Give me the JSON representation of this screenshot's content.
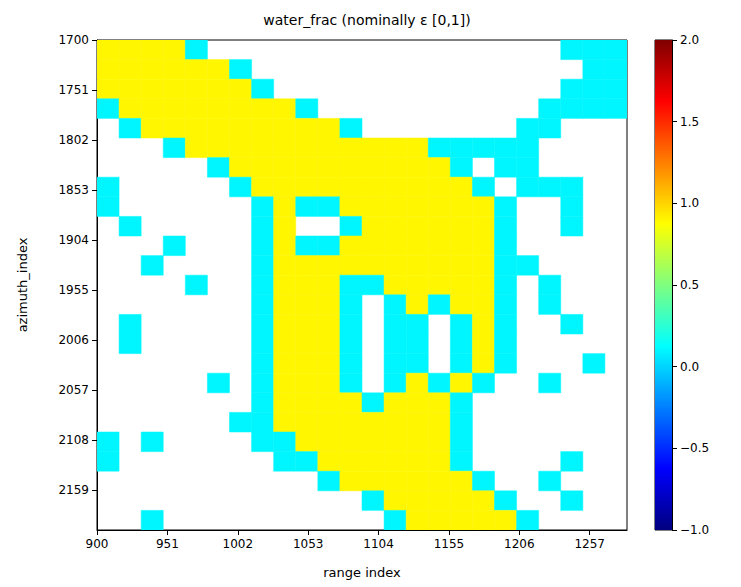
{
  "chart_data": {
    "type": "heatmap",
    "title": "water_frac (nominally ε [0,1])",
    "x_label": "range index",
    "y_label": "azimuth_index",
    "xlim": [
      900,
      1284
    ],
    "ylim": [
      1700,
      2200
    ],
    "xticks": [
      900,
      951,
      1002,
      1053,
      1104,
      1155,
      1206,
      1257
    ],
    "yticks": [
      1700,
      1751,
      1802,
      1853,
      1904,
      1955,
      2006,
      2057,
      2108,
      2159
    ],
    "grid": false,
    "range_edges": [
      900,
      916,
      932,
      948,
      964,
      980,
      996,
      1012,
      1028,
      1044,
      1060,
      1076,
      1092,
      1108,
      1124,
      1140,
      1156,
      1172,
      1188,
      1204,
      1220,
      1236,
      1252,
      1268,
      1284
    ],
    "azimuth_edges": [
      1700,
      1720,
      1740,
      1760,
      1780,
      1800,
      1820,
      1840,
      1860,
      1880,
      1900,
      1920,
      1940,
      1960,
      1980,
      2000,
      2020,
      2040,
      2060,
      2080,
      2100,
      2120,
      2140,
      2160,
      2180,
      2200
    ],
    "cells": [
      [
        0.9,
        0.9,
        0.9,
        0.9,
        0.1,
        null,
        null,
        null,
        null,
        null,
        null,
        null,
        null,
        null,
        null,
        null,
        null,
        null,
        null,
        null,
        null,
        0.1,
        0.1,
        0.1
      ],
      [
        0.9,
        0.9,
        0.9,
        0.9,
        0.9,
        0.9,
        0.1,
        null,
        null,
        null,
        null,
        null,
        null,
        null,
        null,
        null,
        null,
        null,
        null,
        null,
        null,
        null,
        0.1,
        0.1
      ],
      [
        0.9,
        0.9,
        0.9,
        0.9,
        0.9,
        0.9,
        0.9,
        0.1,
        null,
        null,
        null,
        null,
        null,
        null,
        null,
        null,
        null,
        null,
        null,
        null,
        null,
        0.1,
        0.1,
        0.1
      ],
      [
        0.1,
        0.9,
        0.9,
        0.9,
        0.9,
        0.9,
        0.9,
        0.9,
        0.9,
        0.1,
        null,
        null,
        null,
        null,
        null,
        null,
        null,
        null,
        null,
        null,
        0.1,
        0.1,
        0.1,
        0.1
      ],
      [
        null,
        0.1,
        0.9,
        0.9,
        0.9,
        0.9,
        0.9,
        0.9,
        0.9,
        0.9,
        0.9,
        0.1,
        null,
        null,
        null,
        null,
        null,
        null,
        null,
        0.1,
        0.1,
        null,
        null,
        null
      ],
      [
        null,
        null,
        null,
        0.1,
        0.9,
        0.9,
        0.9,
        0.9,
        0.9,
        0.9,
        0.9,
        0.9,
        0.9,
        0.9,
        0.9,
        0.1,
        0.1,
        0.1,
        0.1,
        0.1,
        null,
        null,
        null,
        null
      ],
      [
        null,
        null,
        null,
        null,
        null,
        0.1,
        0.9,
        0.9,
        0.9,
        0.9,
        0.9,
        0.9,
        0.9,
        0.9,
        0.9,
        0.9,
        0.1,
        null,
        0.1,
        0.1,
        null,
        null,
        null,
        null
      ],
      [
        0.1,
        null,
        null,
        null,
        null,
        null,
        0.1,
        0.9,
        0.9,
        0.9,
        0.9,
        0.9,
        0.9,
        0.9,
        0.9,
        0.9,
        0.9,
        0.1,
        null,
        0.1,
        0.1,
        0.1,
        null,
        null
      ],
      [
        0.1,
        null,
        null,
        null,
        null,
        null,
        null,
        0.1,
        0.9,
        0.1,
        0.1,
        0.9,
        0.9,
        0.9,
        0.9,
        0.9,
        0.9,
        0.9,
        0.1,
        null,
        null,
        0.1,
        null,
        null
      ],
      [
        null,
        0.1,
        null,
        null,
        null,
        null,
        null,
        0.1,
        0.9,
        null,
        null,
        0.1,
        0.9,
        0.9,
        0.9,
        0.9,
        0.9,
        0.9,
        0.1,
        null,
        null,
        0.1,
        null,
        null
      ],
      [
        null,
        null,
        null,
        0.1,
        null,
        null,
        null,
        0.1,
        0.9,
        0.1,
        0.1,
        0.9,
        0.9,
        0.9,
        0.9,
        0.9,
        0.9,
        0.9,
        0.1,
        null,
        null,
        null,
        null,
        null
      ],
      [
        null,
        null,
        0.1,
        null,
        null,
        null,
        null,
        0.1,
        0.9,
        0.9,
        0.9,
        0.9,
        0.9,
        0.9,
        0.9,
        0.9,
        0.9,
        0.9,
        0.1,
        0.1,
        null,
        null,
        null,
        null
      ],
      [
        null,
        null,
        null,
        null,
        0.1,
        null,
        null,
        0.1,
        0.9,
        0.9,
        0.9,
        0.1,
        0.1,
        0.9,
        0.9,
        0.9,
        0.9,
        0.9,
        0.1,
        null,
        0.1,
        null,
        null,
        null
      ],
      [
        null,
        null,
        null,
        null,
        null,
        null,
        null,
        0.1,
        0.9,
        0.9,
        0.9,
        0.1,
        null,
        0.1,
        0.9,
        0.1,
        0.9,
        0.9,
        0.1,
        null,
        0.1,
        null,
        null,
        null
      ],
      [
        null,
        0.1,
        null,
        null,
        null,
        null,
        null,
        0.1,
        0.9,
        0.9,
        0.9,
        0.1,
        null,
        0.1,
        0.1,
        null,
        0.1,
        0.9,
        0.1,
        null,
        null,
        0.1,
        null,
        null
      ],
      [
        null,
        0.1,
        null,
        null,
        null,
        null,
        null,
        0.1,
        0.9,
        0.9,
        0.9,
        0.1,
        null,
        0.1,
        0.1,
        null,
        0.1,
        0.9,
        0.1,
        null,
        null,
        null,
        null,
        null
      ],
      [
        null,
        null,
        null,
        null,
        null,
        null,
        null,
        0.1,
        0.9,
        0.9,
        0.9,
        0.1,
        null,
        0.1,
        0.1,
        null,
        0.1,
        0.9,
        0.1,
        null,
        null,
        null,
        0.1,
        null
      ],
      [
        null,
        null,
        null,
        null,
        null,
        0.1,
        null,
        0.1,
        0.9,
        0.9,
        0.9,
        0.1,
        null,
        0.1,
        0.9,
        0.1,
        0.9,
        0.1,
        null,
        null,
        0.1,
        null,
        null,
        null
      ],
      [
        null,
        null,
        null,
        null,
        null,
        null,
        null,
        0.1,
        0.9,
        0.9,
        0.9,
        0.9,
        0.1,
        0.9,
        0.9,
        0.9,
        0.1,
        null,
        null,
        null,
        null,
        null,
        null,
        null
      ],
      [
        null,
        null,
        null,
        null,
        null,
        null,
        0.1,
        0.1,
        0.9,
        0.9,
        0.9,
        0.9,
        0.9,
        0.9,
        0.9,
        0.9,
        0.1,
        null,
        null,
        null,
        null,
        null,
        null,
        null
      ],
      [
        0.1,
        null,
        0.1,
        null,
        null,
        null,
        null,
        0.1,
        0.1,
        0.9,
        0.9,
        0.9,
        0.9,
        0.9,
        0.9,
        0.9,
        0.1,
        null,
        null,
        null,
        null,
        null,
        null,
        null
      ],
      [
        0.1,
        null,
        null,
        null,
        null,
        null,
        null,
        null,
        0.1,
        0.1,
        0.9,
        0.9,
        0.9,
        0.9,
        0.9,
        0.9,
        0.1,
        null,
        null,
        null,
        null,
        0.1,
        null,
        null
      ],
      [
        null,
        null,
        null,
        null,
        null,
        null,
        null,
        null,
        null,
        null,
        0.1,
        0.9,
        0.9,
        0.9,
        0.9,
        0.9,
        0.9,
        0.1,
        null,
        null,
        0.1,
        null,
        null,
        null
      ],
      [
        null,
        null,
        null,
        null,
        null,
        null,
        null,
        null,
        null,
        null,
        null,
        null,
        0.1,
        0.9,
        0.9,
        0.9,
        0.9,
        0.9,
        0.1,
        null,
        null,
        0.1,
        null,
        null
      ],
      [
        null,
        null,
        0.1,
        null,
        null,
        null,
        null,
        null,
        null,
        null,
        null,
        null,
        null,
        0.1,
        0.9,
        0.9,
        0.9,
        0.9,
        0.9,
        0.1,
        null,
        null,
        null,
        null
      ]
    ],
    "colorbar": {
      "range": [
        -1,
        2
      ],
      "ticks": [
        {
          "value": -1,
          "label": "−1.0"
        },
        {
          "value": -0.5,
          "label": "−0.5"
        },
        {
          "value": 0,
          "label": "0.0"
        },
        {
          "value": 0.5,
          "label": "0.5"
        },
        {
          "value": 1,
          "label": "1.0"
        },
        {
          "value": 1.5,
          "label": "1.5"
        },
        {
          "value": 2,
          "label": "2.0"
        }
      ]
    }
  }
}
